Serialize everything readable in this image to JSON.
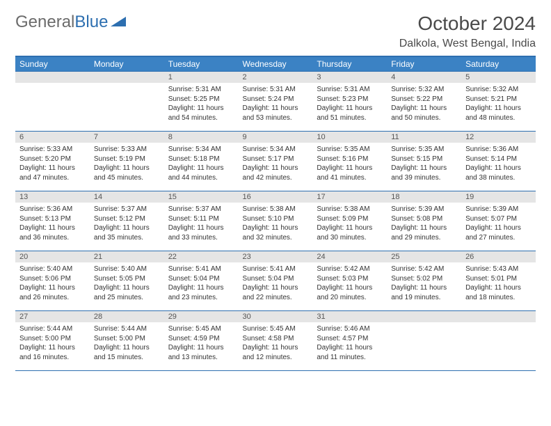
{
  "logo": {
    "text1": "General",
    "text2": "Blue"
  },
  "title": "October 2024",
  "location": "Dalkola, West Bengal, India",
  "colors": {
    "header_bg": "#3b82c4",
    "border": "#2d6fb0",
    "daynum_bg": "#e5e5e5",
    "text": "#333333"
  },
  "weekdays": [
    "Sunday",
    "Monday",
    "Tuesday",
    "Wednesday",
    "Thursday",
    "Friday",
    "Saturday"
  ],
  "weeks": [
    [
      {
        "day": "",
        "sunrise": "",
        "sunset": "",
        "daylight": ""
      },
      {
        "day": "",
        "sunrise": "",
        "sunset": "",
        "daylight": ""
      },
      {
        "day": "1",
        "sunrise": "Sunrise: 5:31 AM",
        "sunset": "Sunset: 5:25 PM",
        "daylight": "Daylight: 11 hours and 54 minutes."
      },
      {
        "day": "2",
        "sunrise": "Sunrise: 5:31 AM",
        "sunset": "Sunset: 5:24 PM",
        "daylight": "Daylight: 11 hours and 53 minutes."
      },
      {
        "day": "3",
        "sunrise": "Sunrise: 5:31 AM",
        "sunset": "Sunset: 5:23 PM",
        "daylight": "Daylight: 11 hours and 51 minutes."
      },
      {
        "day": "4",
        "sunrise": "Sunrise: 5:32 AM",
        "sunset": "Sunset: 5:22 PM",
        "daylight": "Daylight: 11 hours and 50 minutes."
      },
      {
        "day": "5",
        "sunrise": "Sunrise: 5:32 AM",
        "sunset": "Sunset: 5:21 PM",
        "daylight": "Daylight: 11 hours and 48 minutes."
      }
    ],
    [
      {
        "day": "6",
        "sunrise": "Sunrise: 5:33 AM",
        "sunset": "Sunset: 5:20 PM",
        "daylight": "Daylight: 11 hours and 47 minutes."
      },
      {
        "day": "7",
        "sunrise": "Sunrise: 5:33 AM",
        "sunset": "Sunset: 5:19 PM",
        "daylight": "Daylight: 11 hours and 45 minutes."
      },
      {
        "day": "8",
        "sunrise": "Sunrise: 5:34 AM",
        "sunset": "Sunset: 5:18 PM",
        "daylight": "Daylight: 11 hours and 44 minutes."
      },
      {
        "day": "9",
        "sunrise": "Sunrise: 5:34 AM",
        "sunset": "Sunset: 5:17 PM",
        "daylight": "Daylight: 11 hours and 42 minutes."
      },
      {
        "day": "10",
        "sunrise": "Sunrise: 5:35 AM",
        "sunset": "Sunset: 5:16 PM",
        "daylight": "Daylight: 11 hours and 41 minutes."
      },
      {
        "day": "11",
        "sunrise": "Sunrise: 5:35 AM",
        "sunset": "Sunset: 5:15 PM",
        "daylight": "Daylight: 11 hours and 39 minutes."
      },
      {
        "day": "12",
        "sunrise": "Sunrise: 5:36 AM",
        "sunset": "Sunset: 5:14 PM",
        "daylight": "Daylight: 11 hours and 38 minutes."
      }
    ],
    [
      {
        "day": "13",
        "sunrise": "Sunrise: 5:36 AM",
        "sunset": "Sunset: 5:13 PM",
        "daylight": "Daylight: 11 hours and 36 minutes."
      },
      {
        "day": "14",
        "sunrise": "Sunrise: 5:37 AM",
        "sunset": "Sunset: 5:12 PM",
        "daylight": "Daylight: 11 hours and 35 minutes."
      },
      {
        "day": "15",
        "sunrise": "Sunrise: 5:37 AM",
        "sunset": "Sunset: 5:11 PM",
        "daylight": "Daylight: 11 hours and 33 minutes."
      },
      {
        "day": "16",
        "sunrise": "Sunrise: 5:38 AM",
        "sunset": "Sunset: 5:10 PM",
        "daylight": "Daylight: 11 hours and 32 minutes."
      },
      {
        "day": "17",
        "sunrise": "Sunrise: 5:38 AM",
        "sunset": "Sunset: 5:09 PM",
        "daylight": "Daylight: 11 hours and 30 minutes."
      },
      {
        "day": "18",
        "sunrise": "Sunrise: 5:39 AM",
        "sunset": "Sunset: 5:08 PM",
        "daylight": "Daylight: 11 hours and 29 minutes."
      },
      {
        "day": "19",
        "sunrise": "Sunrise: 5:39 AM",
        "sunset": "Sunset: 5:07 PM",
        "daylight": "Daylight: 11 hours and 27 minutes."
      }
    ],
    [
      {
        "day": "20",
        "sunrise": "Sunrise: 5:40 AM",
        "sunset": "Sunset: 5:06 PM",
        "daylight": "Daylight: 11 hours and 26 minutes."
      },
      {
        "day": "21",
        "sunrise": "Sunrise: 5:40 AM",
        "sunset": "Sunset: 5:05 PM",
        "daylight": "Daylight: 11 hours and 25 minutes."
      },
      {
        "day": "22",
        "sunrise": "Sunrise: 5:41 AM",
        "sunset": "Sunset: 5:04 PM",
        "daylight": "Daylight: 11 hours and 23 minutes."
      },
      {
        "day": "23",
        "sunrise": "Sunrise: 5:41 AM",
        "sunset": "Sunset: 5:04 PM",
        "daylight": "Daylight: 11 hours and 22 minutes."
      },
      {
        "day": "24",
        "sunrise": "Sunrise: 5:42 AM",
        "sunset": "Sunset: 5:03 PM",
        "daylight": "Daylight: 11 hours and 20 minutes."
      },
      {
        "day": "25",
        "sunrise": "Sunrise: 5:42 AM",
        "sunset": "Sunset: 5:02 PM",
        "daylight": "Daylight: 11 hours and 19 minutes."
      },
      {
        "day": "26",
        "sunrise": "Sunrise: 5:43 AM",
        "sunset": "Sunset: 5:01 PM",
        "daylight": "Daylight: 11 hours and 18 minutes."
      }
    ],
    [
      {
        "day": "27",
        "sunrise": "Sunrise: 5:44 AM",
        "sunset": "Sunset: 5:00 PM",
        "daylight": "Daylight: 11 hours and 16 minutes."
      },
      {
        "day": "28",
        "sunrise": "Sunrise: 5:44 AM",
        "sunset": "Sunset: 5:00 PM",
        "daylight": "Daylight: 11 hours and 15 minutes."
      },
      {
        "day": "29",
        "sunrise": "Sunrise: 5:45 AM",
        "sunset": "Sunset: 4:59 PM",
        "daylight": "Daylight: 11 hours and 13 minutes."
      },
      {
        "day": "30",
        "sunrise": "Sunrise: 5:45 AM",
        "sunset": "Sunset: 4:58 PM",
        "daylight": "Daylight: 11 hours and 12 minutes."
      },
      {
        "day": "31",
        "sunrise": "Sunrise: 5:46 AM",
        "sunset": "Sunset: 4:57 PM",
        "daylight": "Daylight: 11 hours and 11 minutes."
      },
      {
        "day": "",
        "sunrise": "",
        "sunset": "",
        "daylight": ""
      },
      {
        "day": "",
        "sunrise": "",
        "sunset": "",
        "daylight": ""
      }
    ]
  ]
}
